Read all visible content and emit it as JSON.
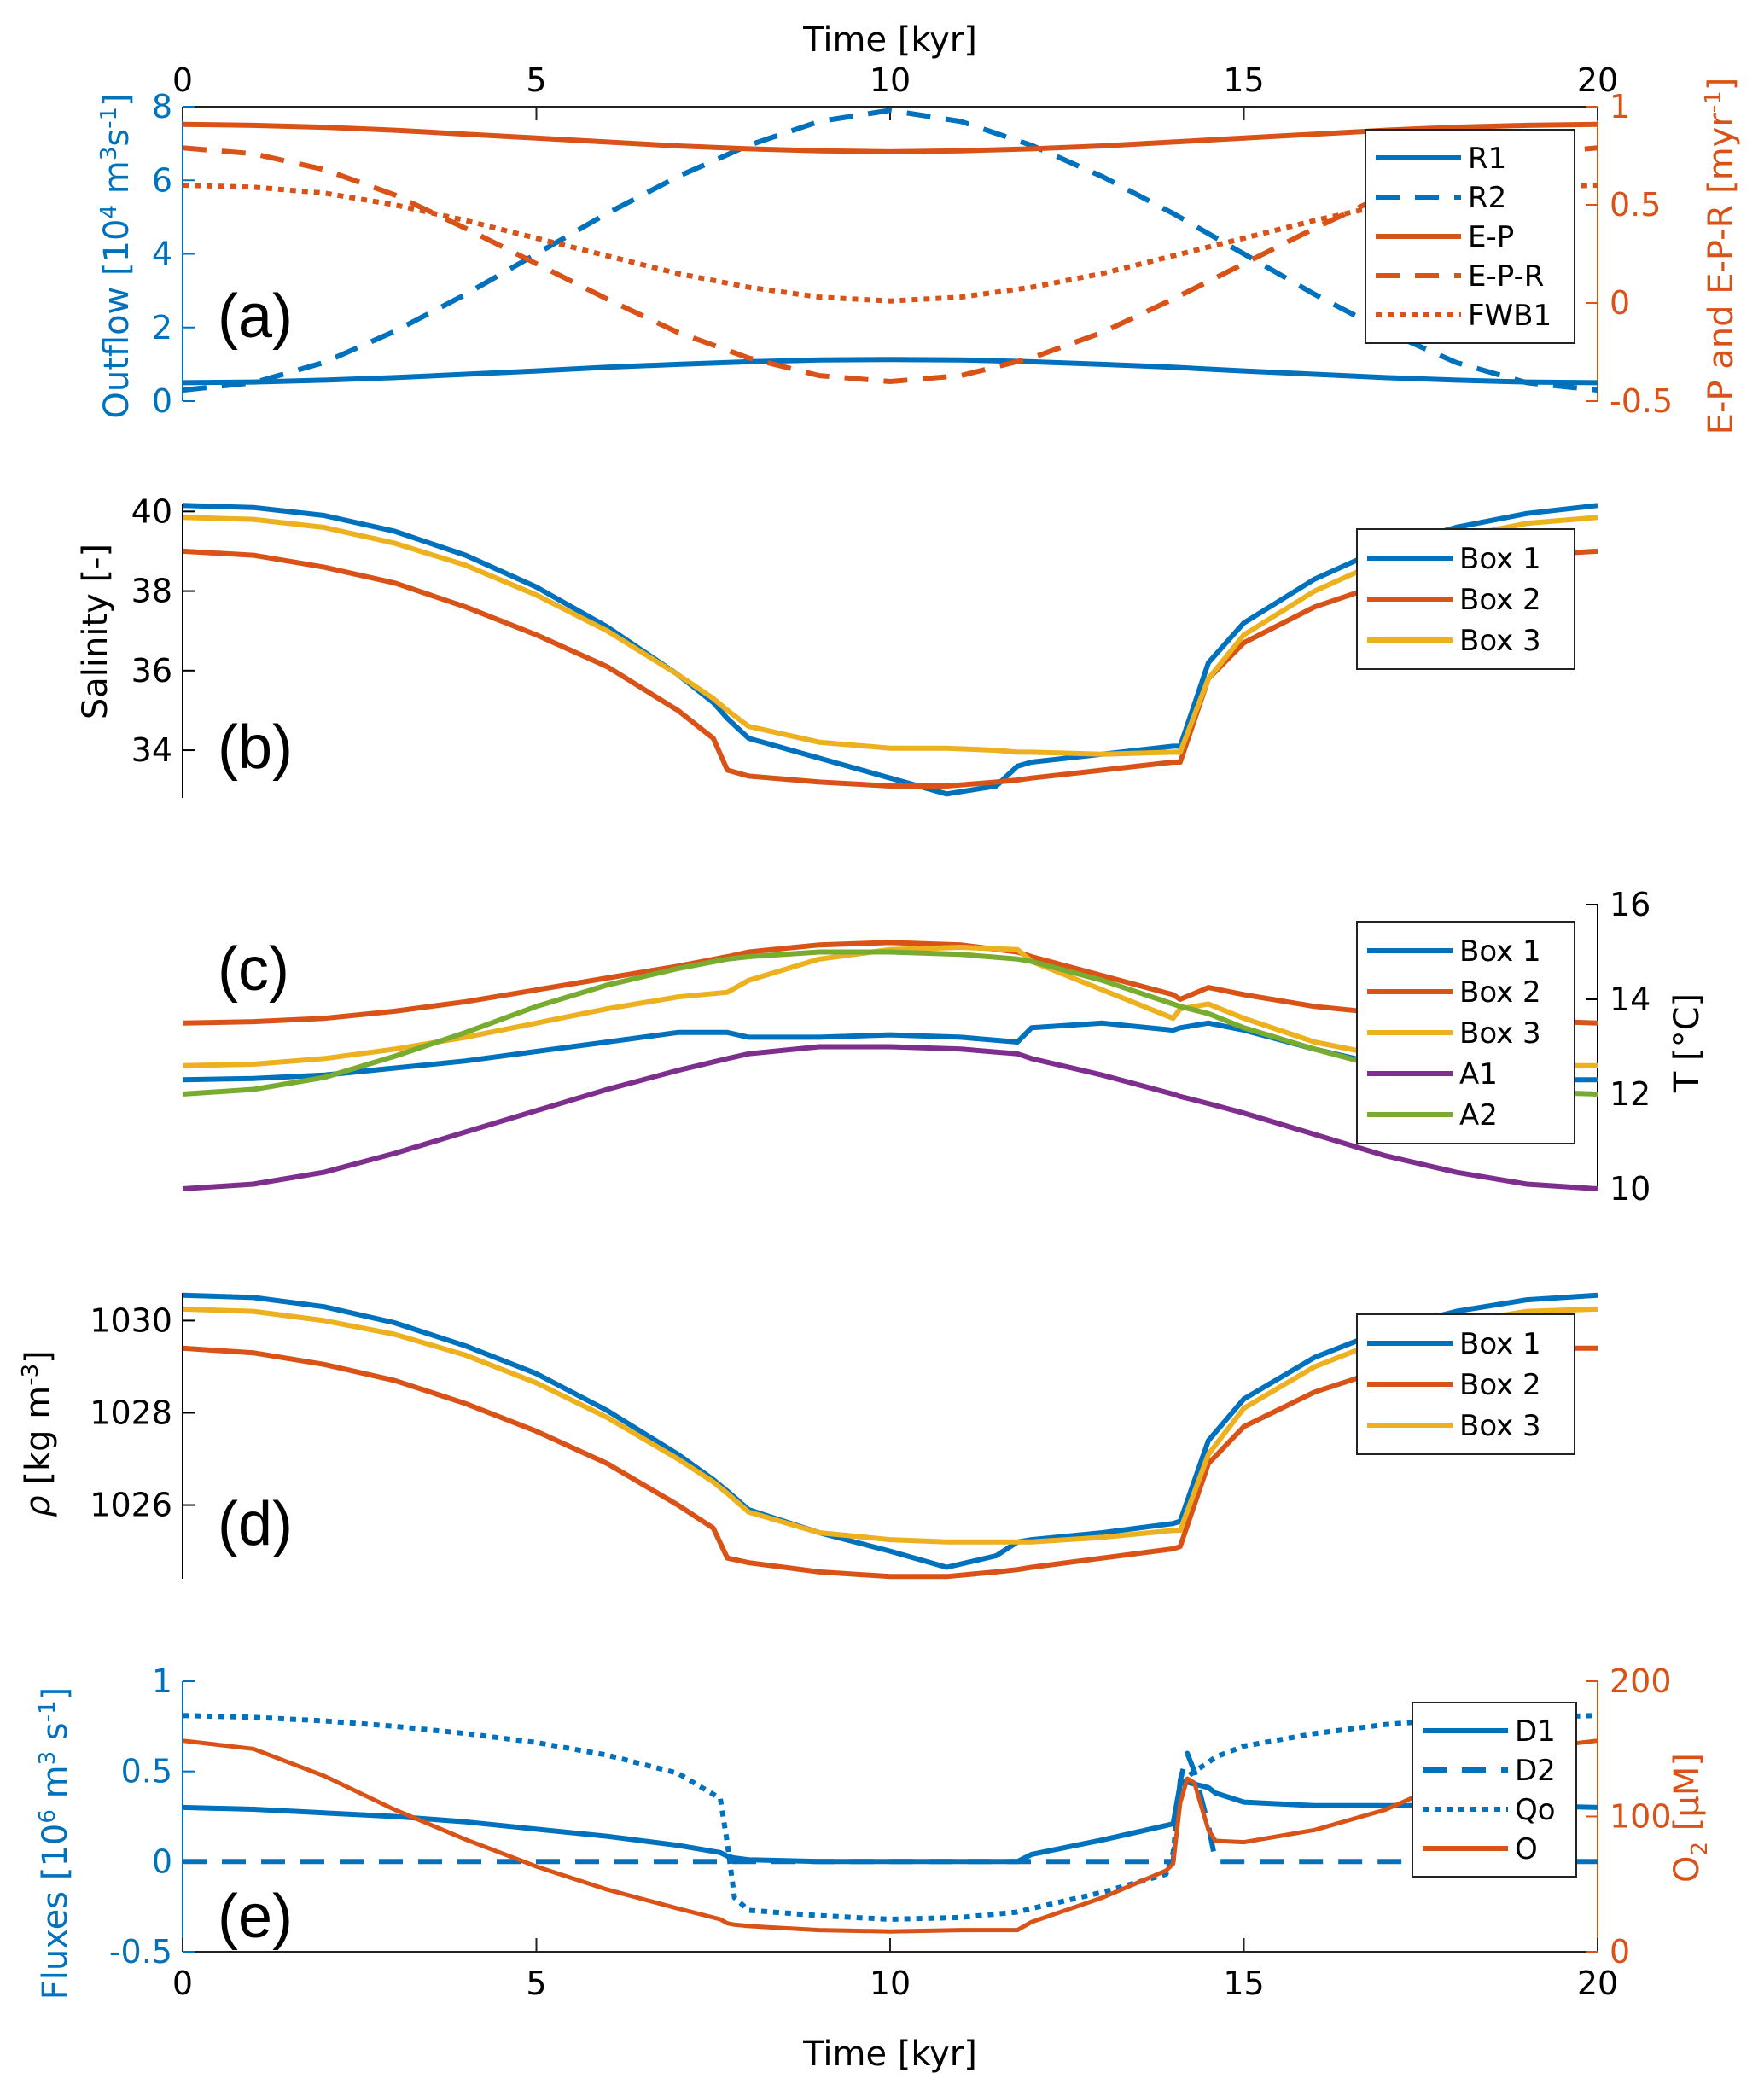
{
  "chart_data": [
    {
      "panel": "(a)",
      "type": "line",
      "x_label_top": "Time [kyr]",
      "xlim": [
        0,
        20
      ],
      "xticks": [
        0,
        5,
        10,
        15,
        20
      ],
      "ylabel_left": "Outflow [10^4 m^3 s^-1]",
      "ylim_left": [
        0,
        8
      ],
      "yticks_left": [
        0,
        2,
        4,
        6,
        8
      ],
      "ylabel_right": "E-P and E-P-R [myr^-1]",
      "ylim_right": [
        -0.5,
        1
      ],
      "yticks_right": [
        -0.5,
        0,
        0.5,
        1
      ],
      "legend": "top-right",
      "x": [
        0,
        1,
        2,
        3,
        4,
        5,
        6,
        7,
        8,
        9,
        10,
        11,
        12,
        13,
        14,
        15,
        16,
        17,
        18,
        19,
        20
      ],
      "series": [
        {
          "name": "R1",
          "axis": "left",
          "style": "solid",
          "color": "#0072BD",
          "values": [
            0.5,
            0.52,
            0.57,
            0.64,
            0.73,
            0.82,
            0.92,
            1.0,
            1.07,
            1.12,
            1.13,
            1.12,
            1.07,
            1.0,
            0.92,
            0.82,
            0.73,
            0.64,
            0.57,
            0.52,
            0.5
          ]
        },
        {
          "name": "R2",
          "axis": "left",
          "style": "dashed",
          "color": "#0072BD",
          "values": [
            0.3,
            0.5,
            1.05,
            1.9,
            2.9,
            4.0,
            5.1,
            6.1,
            6.95,
            7.6,
            7.9,
            7.6,
            6.95,
            6.1,
            5.1,
            4.0,
            2.9,
            1.9,
            1.05,
            0.5,
            0.3
          ]
        },
        {
          "name": "E-P",
          "axis": "right",
          "style": "solid",
          "color": "#D95319",
          "values": [
            0.91,
            0.905,
            0.895,
            0.88,
            0.86,
            0.84,
            0.82,
            0.8,
            0.785,
            0.775,
            0.77,
            0.775,
            0.785,
            0.8,
            0.82,
            0.84,
            0.86,
            0.88,
            0.895,
            0.905,
            0.91
          ]
        },
        {
          "name": "E-P-R",
          "axis": "right",
          "style": "dashed",
          "color": "#D95319",
          "values": [
            0.79,
            0.76,
            0.68,
            0.55,
            0.38,
            0.2,
            0.02,
            -0.15,
            -0.28,
            -0.37,
            -0.4,
            -0.37,
            -0.28,
            -0.15,
            0.02,
            0.2,
            0.38,
            0.55,
            0.68,
            0.76,
            0.79
          ]
        },
        {
          "name": "FWB1",
          "axis": "right",
          "style": "dotted",
          "color": "#D95319",
          "values": [
            0.6,
            0.59,
            0.56,
            0.5,
            0.42,
            0.33,
            0.24,
            0.15,
            0.08,
            0.03,
            0.01,
            0.03,
            0.08,
            0.15,
            0.24,
            0.33,
            0.42,
            0.5,
            0.56,
            0.59,
            0.6
          ]
        }
      ]
    },
    {
      "panel": "(b)",
      "type": "line",
      "xlim": [
        0,
        20
      ],
      "ylabel_left": "Salinity [-]",
      "ylim_left": [
        32.8,
        40.2
      ],
      "yticks_left": [
        34,
        36,
        38,
        40
      ],
      "legend": "top-right",
      "x": [
        0,
        1,
        2,
        3,
        4,
        5,
        6,
        7,
        7.5,
        7.7,
        8,
        9,
        10,
        10.8,
        11.5,
        11.8,
        12,
        13,
        14,
        14.1,
        14.5,
        15,
        16,
        17,
        18,
        19,
        20
      ],
      "series": [
        {
          "name": "Box 1",
          "color": "#0072BD",
          "values": [
            40.15,
            40.1,
            39.9,
            39.5,
            38.9,
            38.1,
            37.1,
            35.9,
            35.2,
            34.8,
            34.3,
            33.8,
            33.3,
            32.9,
            33.1,
            33.6,
            33.7,
            33.9,
            34.1,
            34.1,
            36.2,
            37.2,
            38.3,
            39.1,
            39.6,
            39.95,
            40.15
          ]
        },
        {
          "name": "Box 2",
          "color": "#D95319",
          "values": [
            39.0,
            38.9,
            38.6,
            38.2,
            37.6,
            36.9,
            36.1,
            35.0,
            34.3,
            33.5,
            33.35,
            33.2,
            33.1,
            33.1,
            33.2,
            33.25,
            33.3,
            33.5,
            33.7,
            33.7,
            35.8,
            36.7,
            37.6,
            38.2,
            38.6,
            38.9,
            39.0
          ]
        },
        {
          "name": "Box 3",
          "color": "#EDB120",
          "values": [
            39.85,
            39.8,
            39.6,
            39.2,
            38.65,
            37.9,
            37.0,
            35.9,
            35.3,
            35.0,
            34.6,
            34.2,
            34.05,
            34.05,
            34.0,
            33.95,
            33.95,
            33.9,
            33.95,
            33.95,
            35.8,
            36.9,
            38.0,
            38.8,
            39.35,
            39.7,
            39.85
          ]
        }
      ]
    },
    {
      "panel": "(c)",
      "type": "line",
      "xlim": [
        0,
        20
      ],
      "ylabel_right": "T [°C]",
      "ylim_right": [
        10,
        16
      ],
      "yticks_right": [
        10,
        12,
        14,
        16
      ],
      "legend": "top-right",
      "x": [
        0,
        1,
        2,
        3,
        4,
        5,
        6,
        7,
        7.7,
        8,
        9,
        10,
        11,
        11.8,
        12,
        13,
        14,
        14.1,
        14.5,
        15,
        16,
        17,
        18,
        19,
        20
      ],
      "series": [
        {
          "name": "Box 1",
          "color": "#0072BD",
          "values": [
            12.3,
            12.33,
            12.4,
            12.55,
            12.7,
            12.9,
            13.1,
            13.3,
            13.3,
            13.2,
            13.2,
            13.25,
            13.2,
            13.1,
            13.4,
            13.5,
            13.35,
            13.4,
            13.5,
            13.35,
            12.95,
            12.6,
            12.4,
            12.3,
            12.3
          ]
        },
        {
          "name": "Box 2",
          "color": "#D95319",
          "values": [
            13.5,
            13.53,
            13.6,
            13.75,
            13.95,
            14.2,
            14.45,
            14.7,
            14.9,
            15.0,
            15.15,
            15.2,
            15.15,
            15.0,
            14.9,
            14.5,
            14.1,
            14.0,
            14.25,
            14.1,
            13.85,
            13.7,
            13.6,
            13.55,
            13.5
          ]
        },
        {
          "name": "Box 3",
          "color": "#EDB120",
          "values": [
            12.6,
            12.63,
            12.75,
            12.95,
            13.2,
            13.5,
            13.8,
            14.05,
            14.15,
            14.4,
            14.85,
            15.05,
            15.1,
            15.05,
            14.8,
            14.2,
            13.6,
            13.8,
            13.9,
            13.6,
            13.1,
            12.8,
            12.65,
            12.6,
            12.6
          ]
        },
        {
          "name": "A1",
          "color": "#7E2F8E",
          "values": [
            10.0,
            10.1,
            10.35,
            10.75,
            11.2,
            11.65,
            12.1,
            12.5,
            12.75,
            12.85,
            13.0,
            13.0,
            12.95,
            12.85,
            12.75,
            12.4,
            12.0,
            11.95,
            11.8,
            11.6,
            11.15,
            10.7,
            10.35,
            10.1,
            10.0
          ]
        },
        {
          "name": "A2",
          "color": "#77AC30",
          "values": [
            12.0,
            12.1,
            12.35,
            12.8,
            13.3,
            13.85,
            14.3,
            14.65,
            14.85,
            14.9,
            15.0,
            15.0,
            14.95,
            14.85,
            14.8,
            14.4,
            13.9,
            13.85,
            13.7,
            13.4,
            12.95,
            12.55,
            12.2,
            12.05,
            12.0
          ]
        }
      ]
    },
    {
      "panel": "(d)",
      "type": "line",
      "xlim": [
        0,
        20
      ],
      "ylabel_left": "ρ [kg m^-3]",
      "ylim_left": [
        1024.4,
        1030.6
      ],
      "yticks_left": [
        1026,
        1028,
        1030
      ],
      "legend": "top-right",
      "x": [
        0,
        1,
        2,
        3,
        4,
        5,
        6,
        7,
        7.5,
        7.7,
        8,
        9,
        10,
        10.8,
        11.5,
        11.8,
        12,
        13,
        14,
        14.1,
        14.5,
        15,
        16,
        17,
        18,
        19,
        20
      ],
      "series": [
        {
          "name": "Box 1",
          "color": "#0072BD",
          "values": [
            1030.55,
            1030.5,
            1030.3,
            1029.95,
            1029.45,
            1028.85,
            1028.05,
            1027.1,
            1026.55,
            1026.3,
            1025.9,
            1025.4,
            1025.0,
            1024.65,
            1024.9,
            1025.2,
            1025.25,
            1025.4,
            1025.6,
            1025.65,
            1027.4,
            1028.3,
            1029.2,
            1029.8,
            1030.2,
            1030.45,
            1030.55
          ]
        },
        {
          "name": "Box 2",
          "color": "#D95319",
          "values": [
            1029.4,
            1029.3,
            1029.05,
            1028.7,
            1028.2,
            1027.6,
            1026.9,
            1026.0,
            1025.5,
            1024.85,
            1024.75,
            1024.55,
            1024.45,
            1024.45,
            1024.55,
            1024.6,
            1024.65,
            1024.85,
            1025.05,
            1025.1,
            1026.9,
            1027.7,
            1028.45,
            1028.95,
            1029.25,
            1029.4,
            1029.4
          ]
        },
        {
          "name": "Box 3",
          "color": "#EDB120",
          "values": [
            1030.25,
            1030.2,
            1030.0,
            1029.7,
            1029.25,
            1028.65,
            1027.9,
            1027.0,
            1026.5,
            1026.25,
            1025.85,
            1025.4,
            1025.25,
            1025.2,
            1025.2,
            1025.2,
            1025.2,
            1025.3,
            1025.45,
            1025.45,
            1027.1,
            1028.1,
            1029.0,
            1029.6,
            1029.95,
            1030.2,
            1030.25
          ]
        }
      ]
    },
    {
      "panel": "(e)",
      "type": "line",
      "xlabel": "Time [kyr]",
      "xlim": [
        0,
        20
      ],
      "xticks": [
        0,
        5,
        10,
        15,
        20
      ],
      "ylabel_left": "Fluxes [10^6 m^3 s^-1]",
      "ylim_left": [
        -0.5,
        1
      ],
      "yticks_left": [
        -0.5,
        0,
        0.5,
        1
      ],
      "ylabel_right": "O2 [μM]",
      "ylim_right": [
        0,
        200
      ],
      "yticks_right": [
        0,
        100,
        200
      ],
      "legend": "top-right",
      "x": [
        0,
        1,
        2,
        3,
        4,
        5,
        6,
        7,
        7.6,
        7.7,
        7.8,
        8,
        9,
        10,
        11,
        11.8,
        12,
        13,
        13.9,
        14.0,
        14.1,
        14.2,
        14.3,
        14.5,
        14.6,
        15,
        16,
        17,
        18,
        19,
        20
      ],
      "series": [
        {
          "name": "D1",
          "axis": "left",
          "style": "solid",
          "color": "#0072BD",
          "values": [
            0.3,
            0.29,
            0.27,
            0.25,
            0.22,
            0.18,
            0.14,
            0.09,
            0.05,
            0.03,
            0.02,
            0.01,
            0.0,
            0.0,
            0.0,
            0.0,
            0.04,
            0.12,
            0.2,
            0.21,
            0.43,
            0.44,
            0.43,
            0.41,
            0.38,
            0.33,
            0.31,
            0.31,
            0.31,
            0.31,
            0.3
          ]
        },
        {
          "name": "D2",
          "axis": "left",
          "style": "dashed",
          "color": "#0072BD",
          "values": [
            0.0,
            0.0,
            0.0,
            0.0,
            0.0,
            0.0,
            0.0,
            0.0,
            0.0,
            0.0,
            0.0,
            0.0,
            0.0,
            0.0,
            0.0,
            0.0,
            0.0,
            0.0,
            0.0,
            0.0,
            0.45,
            0.6,
            0.5,
            0.2,
            0.0,
            0.0,
            0.0,
            0.0,
            0.0,
            0.0,
            0.0
          ]
        },
        {
          "name": "Qo",
          "axis": "left",
          "style": "dotted",
          "color": "#0072BD",
          "values": [
            0.81,
            0.8,
            0.78,
            0.75,
            0.71,
            0.66,
            0.59,
            0.49,
            0.35,
            0.1,
            -0.2,
            -0.27,
            -0.3,
            -0.32,
            -0.31,
            -0.28,
            -0.26,
            -0.17,
            -0.07,
            0.05,
            0.4,
            0.47,
            0.5,
            0.55,
            0.58,
            0.64,
            0.71,
            0.76,
            0.79,
            0.8,
            0.81
          ]
        },
        {
          "name": "O",
          "axis": "right",
          "style": "solid",
          "color": "#D95319",
          "values": [
            156,
            150,
            130,
            105,
            83,
            63,
            46,
            32,
            24,
            21,
            20,
            19,
            16,
            15,
            16,
            16,
            22,
            40,
            60,
            65,
            110,
            128,
            125,
            90,
            82,
            81,
            90,
            105,
            128,
            150,
            156
          ]
        }
      ]
    }
  ],
  "panels": [
    {
      "label": "(a)"
    },
    {
      "label": "(b)"
    },
    {
      "label": "(c)"
    },
    {
      "label": "(d)"
    },
    {
      "label": "(e)"
    }
  ],
  "axis_titles": {
    "top_x": "Time [kyr]",
    "bottom_x": "Time [kyr]",
    "a_left": "Outflow [10",
    "a_left_sup1": "4",
    "a_left_mid": " m",
    "a_left_sup2": "3",
    "a_left_mid2": "s",
    "a_left_sup3": "-1",
    "a_left_end": "]",
    "a_right": "E-P and E-P-R [myr",
    "a_right_sup": "-1",
    "a_right_end": "]",
    "b_left": "Salinity [-]",
    "c_right": "T [°C]",
    "d_left_rho": "ρ",
    "d_left": " [kg m",
    "d_left_sup": "-3",
    "d_left_end": "]",
    "e_left": "Fluxes [10",
    "e_left_sup1": "6",
    "e_left_mid": " m",
    "e_left_sup2": "3",
    "e_left_mid2": " s",
    "e_left_sup3": "-1",
    "e_left_end": "]",
    "e_right": "O",
    "e_right_sub": "2",
    "e_right_end": " [μM]"
  },
  "colors": {
    "blue": "#0072BD",
    "orange": "#D95319",
    "yellow": "#EDB120",
    "purple": "#7E2F8E",
    "green": "#77AC30",
    "axis_blue": "#0072BD",
    "axis_orange": "#D95319",
    "black": "#000000"
  }
}
